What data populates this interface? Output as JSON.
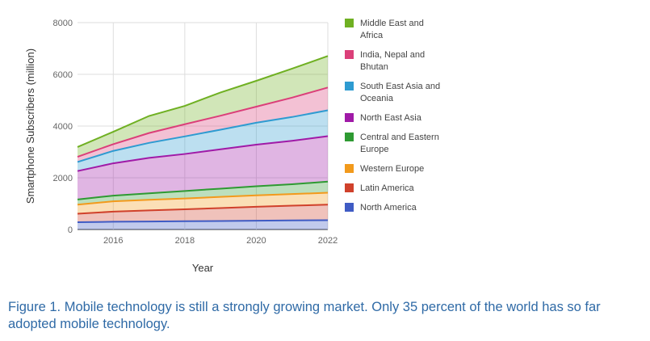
{
  "caption": "Figure 1. Mobile technology is still a strongly growing market. Only 35 percent of the world has so far adopted mobile technology.",
  "chart_data": {
    "type": "area",
    "stacked": true,
    "xlabel": "Year",
    "ylabel": "Smartphone Subscribers (million)",
    "x": [
      2015,
      2016,
      2017,
      2018,
      2019,
      2020,
      2021,
      2022
    ],
    "xticks": [
      2016,
      2018,
      2020,
      2022
    ],
    "ylim": [
      0,
      8000
    ],
    "xlim": [
      2015,
      2022
    ],
    "yticks": [
      0,
      2000,
      4000,
      6000,
      8000
    ],
    "grid": true,
    "legend_position": "right",
    "series": [
      {
        "name": "North America",
        "color": "#3f5bc4",
        "values": [
          280,
          300,
          310,
          320,
          330,
          340,
          350,
          360
        ]
      },
      {
        "name": "Latin America",
        "color": "#d0412b",
        "values": [
          330,
          390,
          430,
          460,
          500,
          540,
          570,
          600
        ]
      },
      {
        "name": "Western Europe",
        "color": "#f29a1c",
        "values": [
          350,
          400,
          410,
          420,
          430,
          440,
          450,
          460
        ]
      },
      {
        "name": "Central and Eastern Europe",
        "color": "#2e9a32",
        "values": [
          200,
          220,
          250,
          290,
          320,
          350,
          380,
          430
        ]
      },
      {
        "name": "North East Asia",
        "color": "#a01aa7",
        "values": [
          1100,
          1250,
          1370,
          1430,
          1520,
          1610,
          1680,
          1760
        ]
      },
      {
        "name": "South East Asia and Oceania",
        "color": "#2e9bd1",
        "values": [
          350,
          480,
          580,
          680,
          760,
          850,
          920,
          1000
        ]
      },
      {
        "name": "India, Nepal and Bhutan",
        "color": "#db3f79",
        "values": [
          200,
          260,
          380,
          470,
          540,
          620,
          750,
          880
        ]
      },
      {
        "name": "Middle East and Africa",
        "color": "#6fb022",
        "values": [
          380,
          480,
          660,
          710,
          900,
          1000,
          1120,
          1220
        ]
      }
    ],
    "legend_order": [
      "Middle East and Africa",
      "India, Nepal and Bhutan",
      "South East Asia and Oceania",
      "North East Asia",
      "Central and Eastern Europe",
      "Western Europe",
      "Latin America",
      "North America"
    ]
  }
}
